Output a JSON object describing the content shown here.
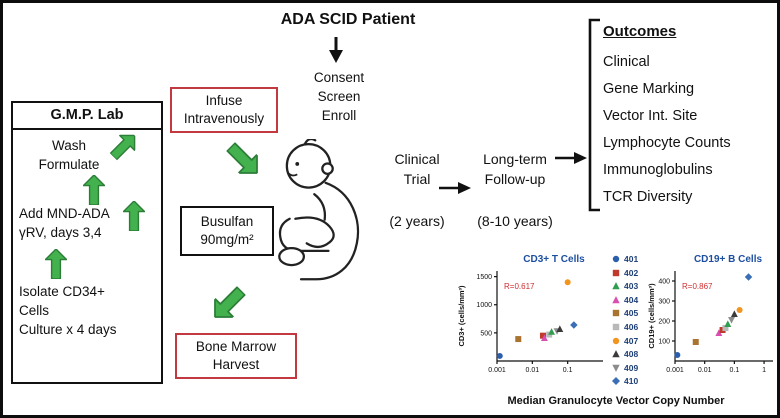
{
  "diagram": {
    "title": "ADA SCID Patient",
    "consent": "Consent\nScreen\nEnroll",
    "gmp_lab": {
      "title": "G.M.P. Lab",
      "wash": "Wash\nFormulate",
      "add_vector": "Add MND-ADA\nγRV, days 3,4",
      "isolate": "Isolate CD34+\nCells\nCulture x 4 days"
    },
    "infuse_box": "Infuse\nIntravenously",
    "busulfan_box": "Busulfan\n90mg/m²",
    "bone_marrow_box": "Bone Marrow\nHarvest",
    "clinical_trial": "Clinical\nTrial",
    "clinical_trial_duration": "(2 years)",
    "follow_up": "Long-term\nFollow-up",
    "follow_up_duration": "(8-10 years)",
    "outcomes": {
      "title": "Outcomes",
      "items": [
        "Clinical",
        "Gene Marking",
        "Vector Int. Site",
        "Lymphocyte Counts",
        "Immunoglobulins",
        "TCR Diversity"
      ]
    }
  },
  "charts": {
    "xlabel": "Median Granulocyte Vector Copy Number",
    "title_color": "#1d4fa1",
    "r_color": "#d02f2f",
    "legend": [
      {
        "label": "401",
        "color": "#2b5fad",
        "shape": "circle"
      },
      {
        "label": "402",
        "color": "#c0392b",
        "shape": "square"
      },
      {
        "label": "403",
        "color": "#2f9e4f",
        "shape": "triangle-up"
      },
      {
        "label": "404",
        "color": "#d94fb0",
        "shape": "triangle-up"
      },
      {
        "label": "405",
        "color": "#a9742f",
        "shape": "square"
      },
      {
        "label": "406",
        "color": "#b9b9b9",
        "shape": "square"
      },
      {
        "label": "407",
        "color": "#f2941d",
        "shape": "circle"
      },
      {
        "label": "408",
        "color": "#3a3a3a",
        "shape": "triangle-up"
      },
      {
        "label": "409",
        "color": "#8c8c8c",
        "shape": "triangle-down"
      },
      {
        "label": "410",
        "color": "#3b6fb5",
        "shape": "diamond"
      }
    ]
  },
  "chart_data": [
    {
      "type": "scatter",
      "title": "CD3+ T Cells",
      "r_label": "R=0.617",
      "ylabel": "CD3+ (cells/mm³)",
      "xlabel": "Median Granulocyte Vector Copy Number",
      "x_scale": "log",
      "xlim": [
        0.001,
        1
      ],
      "ylim": [
        0,
        1600
      ],
      "xticks": [
        0.001,
        0.01,
        0.1
      ],
      "yticks": [
        500,
        1000,
        1500
      ],
      "points": [
        {
          "id": "401",
          "x": 0.0012,
          "y": 90
        },
        {
          "id": "405",
          "x": 0.004,
          "y": 390
        },
        {
          "id": "402",
          "x": 0.02,
          "y": 450
        },
        {
          "id": "404",
          "x": 0.022,
          "y": 410
        },
        {
          "id": "406",
          "x": 0.03,
          "y": 470
        },
        {
          "id": "403",
          "x": 0.035,
          "y": 520
        },
        {
          "id": "409",
          "x": 0.05,
          "y": 530
        },
        {
          "id": "408",
          "x": 0.06,
          "y": 570
        },
        {
          "id": "407",
          "x": 0.1,
          "y": 1400
        },
        {
          "id": "410",
          "x": 0.15,
          "y": 640
        }
      ]
    },
    {
      "type": "scatter",
      "title": "CD19+ B Cells",
      "r_label": "R=0.867",
      "ylabel": "CD19+ (cells/mm³)",
      "xlabel": "Median Granulocyte Vector Copy Number",
      "x_scale": "log",
      "xlim": [
        0.001,
        2
      ],
      "ylim": [
        0,
        450
      ],
      "xticks": [
        0.001,
        0.01,
        0.1,
        1
      ],
      "yticks": [
        100,
        200,
        300,
        400
      ],
      "points": [
        {
          "id": "401",
          "x": 0.0012,
          "y": 30
        },
        {
          "id": "405",
          "x": 0.005,
          "y": 95
        },
        {
          "id": "404",
          "x": 0.03,
          "y": 140
        },
        {
          "id": "402",
          "x": 0.04,
          "y": 155
        },
        {
          "id": "406",
          "x": 0.05,
          "y": 165
        },
        {
          "id": "403",
          "x": 0.06,
          "y": 185
        },
        {
          "id": "409",
          "x": 0.08,
          "y": 205
        },
        {
          "id": "408",
          "x": 0.1,
          "y": 235
        },
        {
          "id": "407",
          "x": 0.15,
          "y": 255
        },
        {
          "id": "410",
          "x": 0.3,
          "y": 420
        }
      ]
    }
  ]
}
